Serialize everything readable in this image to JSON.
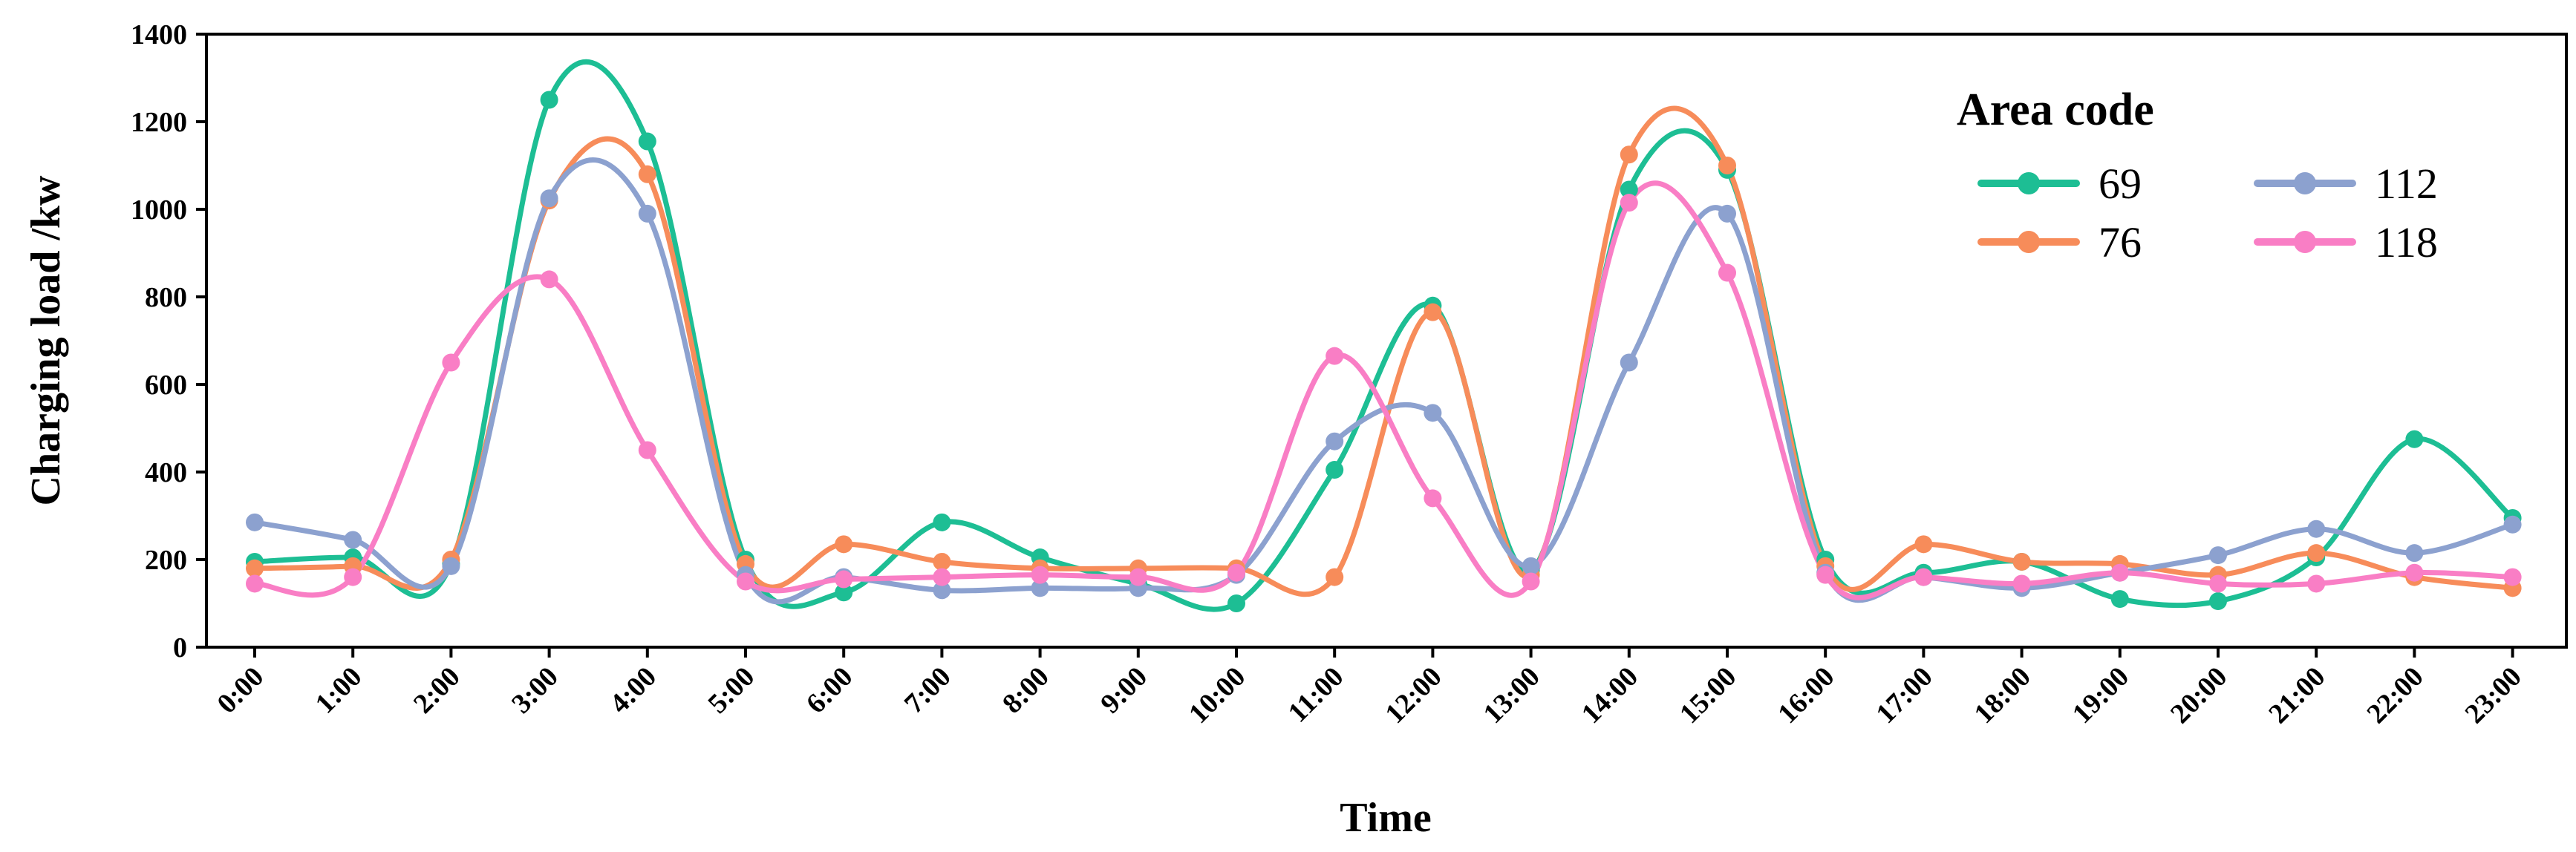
{
  "chart_data": {
    "type": "line",
    "title": "",
    "xlabel": "Time",
    "ylabel": "Charging load /kw",
    "ylim": [
      0,
      1400
    ],
    "yticks": [
      0,
      200,
      400,
      600,
      800,
      1000,
      1200,
      1400
    ],
    "categories": [
      "0:00",
      "1:00",
      "2:00",
      "3:00",
      "4:00",
      "5:00",
      "6:00",
      "7:00",
      "8:00",
      "9:00",
      "10:00",
      "11:00",
      "12:00",
      "13:00",
      "14:00",
      "15:00",
      "16:00",
      "17:00",
      "18:00",
      "19:00",
      "20:00",
      "21:00",
      "22:00",
      "23:00"
    ],
    "legend_title": "Area code",
    "legend_position": "top-right",
    "grid": false,
    "smooth": true,
    "series": [
      {
        "name": "69",
        "color": "#1dbe94",
        "values": [
          195,
          205,
          190,
          1250,
          1155,
          200,
          125,
          285,
          205,
          145,
          100,
          405,
          780,
          175,
          1045,
          1090,
          200,
          170,
          195,
          110,
          105,
          205,
          475,
          295
        ]
      },
      {
        "name": "76",
        "color": "#f78c5a",
        "values": [
          180,
          185,
          200,
          1020,
          1080,
          190,
          235,
          195,
          180,
          180,
          180,
          160,
          765,
          165,
          1125,
          1100,
          185,
          235,
          195,
          190,
          165,
          215,
          160,
          135
        ]
      },
      {
        "name": "112",
        "color": "#8ca1cf",
        "values": [
          285,
          245,
          185,
          1025,
          990,
          165,
          160,
          130,
          135,
          135,
          165,
          470,
          535,
          185,
          650,
          990,
          170,
          160,
          135,
          170,
          210,
          270,
          215,
          280
        ]
      },
      {
        "name": "118",
        "color": "#f97ec5",
        "values": [
          145,
          160,
          650,
          840,
          450,
          150,
          155,
          160,
          165,
          160,
          170,
          665,
          340,
          150,
          1015,
          855,
          165,
          160,
          145,
          170,
          145,
          145,
          170,
          160
        ]
      }
    ]
  }
}
